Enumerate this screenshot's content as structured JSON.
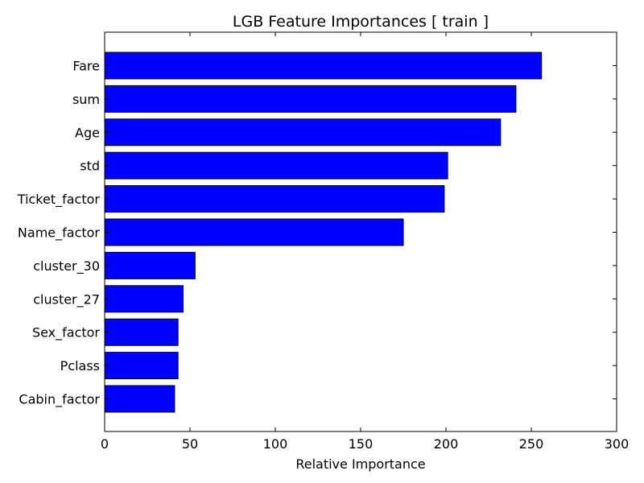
{
  "chart_data": {
    "type": "bar",
    "orientation": "horizontal",
    "title": "LGB Feature Importances [ train ]",
    "xlabel": "Relative Importance",
    "ylabel": "",
    "xlim": [
      0,
      300
    ],
    "xticks": [
      0,
      50,
      100,
      150,
      200,
      250,
      300
    ],
    "grid": false,
    "categories": [
      "Fare",
      "sum",
      "Age",
      "std",
      "Ticket_factor",
      "Name_factor",
      "cluster_30",
      "cluster_27",
      "Sex_factor",
      "Pclass",
      "Cabin_factor"
    ],
    "values": [
      256,
      241,
      232,
      201,
      199,
      175,
      53,
      46,
      43,
      43,
      41
    ],
    "bar_color": "#0000ff"
  }
}
